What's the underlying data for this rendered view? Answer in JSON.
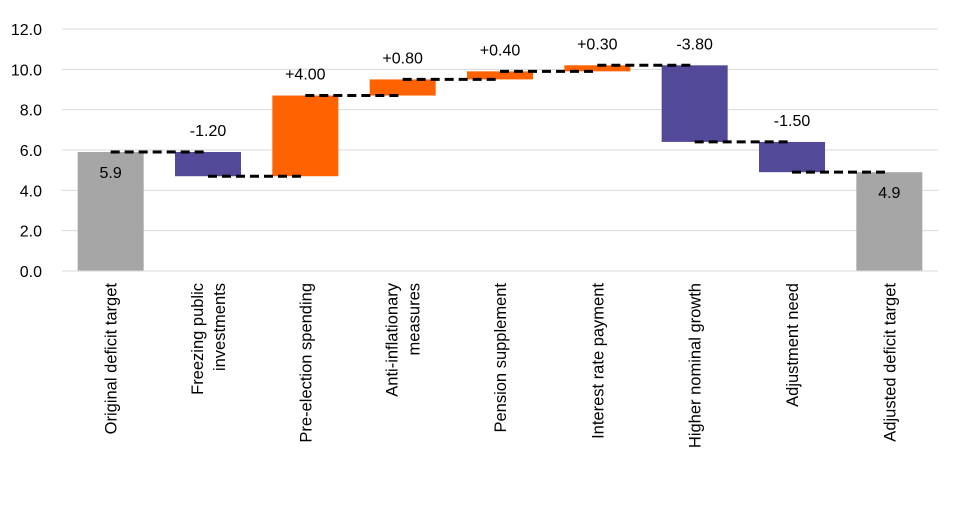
{
  "chart_data": {
    "type": "bar",
    "subtype": "waterfall",
    "title": "",
    "xlabel": "",
    "ylabel": "",
    "ylim": [
      0,
      12
    ],
    "yticks": [
      "0.0",
      "2.0",
      "4.0",
      "6.0",
      "8.0",
      "10.0",
      "12.0"
    ],
    "grid": true,
    "legend": "none",
    "categories": [
      [
        "Original deficit target"
      ],
      [
        "Freezing public",
        "investments"
      ],
      [
        "Pre-election spending"
      ],
      [
        "Anti-inflationary",
        "measures"
      ],
      [
        "Pension supplement"
      ],
      [
        "Interest rate payment"
      ],
      [
        "Higher nominal growth"
      ],
      [
        "Adjustment need"
      ],
      [
        "Adjusted deficit target"
      ]
    ],
    "bars": [
      {
        "kind": "total",
        "start": 0,
        "end": 5.9,
        "label": "5.9"
      },
      {
        "kind": "delta",
        "start": 5.9,
        "end": 4.7,
        "label": "-1.20"
      },
      {
        "kind": "delta",
        "start": 4.7,
        "end": 8.7,
        "label": "+4.00"
      },
      {
        "kind": "delta",
        "start": 8.7,
        "end": 9.5,
        "label": "+0.80"
      },
      {
        "kind": "delta",
        "start": 9.5,
        "end": 9.9,
        "label": "+0.40"
      },
      {
        "kind": "delta",
        "start": 9.9,
        "end": 10.2,
        "label": "+0.30"
      },
      {
        "kind": "delta",
        "start": 10.2,
        "end": 6.4,
        "label": "-3.80"
      },
      {
        "kind": "delta",
        "start": 6.4,
        "end": 4.9,
        "label": "-1.50"
      },
      {
        "kind": "total",
        "start": 0,
        "end": 4.9,
        "label": "4.9"
      }
    ],
    "colors": {
      "total": "#a6a6a6",
      "increase": "#ff6200",
      "decrease": "#524a99",
      "connector": "#000000",
      "grid": "#d9d9d9"
    }
  }
}
